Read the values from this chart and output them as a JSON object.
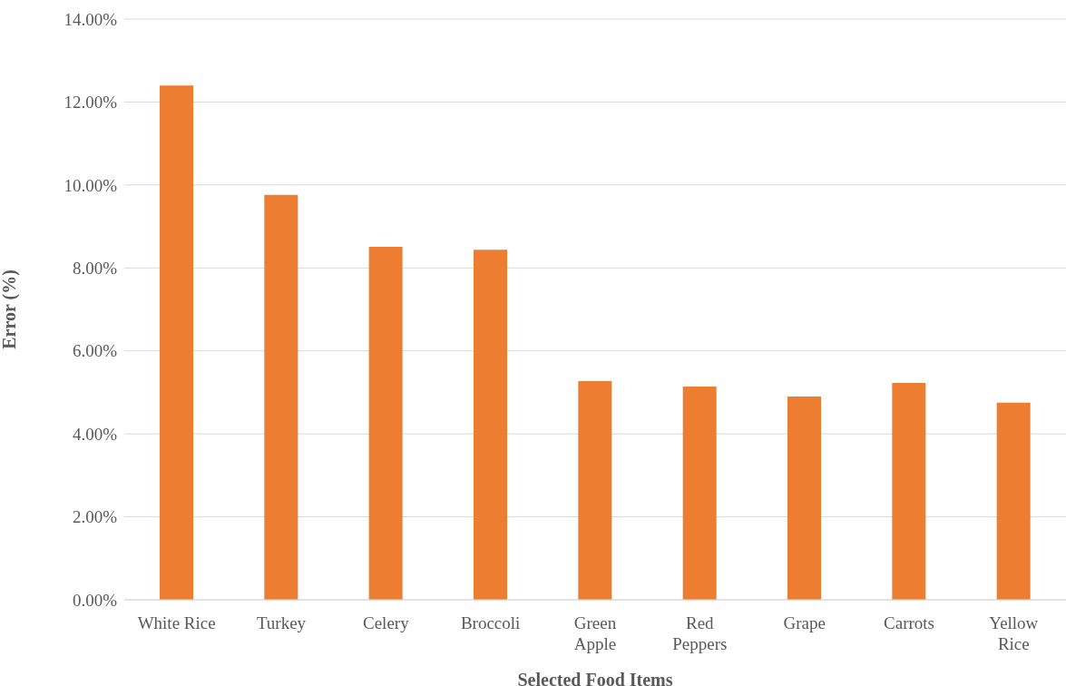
{
  "chart_data": {
    "type": "bar",
    "xlabel": "Selected Food Items",
    "ylabel": "Error (%)",
    "categories": [
      "White Rice",
      "Turkey",
      "Celery",
      "Broccoli",
      "Green Apple",
      "Red Peppers",
      "Grape",
      "Carrots",
      "Yellow Rice"
    ],
    "values": [
      12.4,
      9.76,
      8.51,
      8.44,
      5.27,
      5.14,
      4.9,
      5.23,
      4.75
    ],
    "color": "#ed7d31",
    "ylim": [
      0,
      14
    ],
    "yticks": [
      {
        "value": 0,
        "label": "0.00%"
      },
      {
        "value": 2,
        "label": "2.00%"
      },
      {
        "value": 4,
        "label": "4.00%"
      },
      {
        "value": 6,
        "label": "6.00%"
      },
      {
        "value": 8,
        "label": "8.00%"
      },
      {
        "value": 10,
        "label": "10.00%"
      },
      {
        "value": 12,
        "label": "12.00%"
      },
      {
        "value": 14,
        "label": "14.00%"
      }
    ],
    "grid": "y",
    "legend": false
  }
}
